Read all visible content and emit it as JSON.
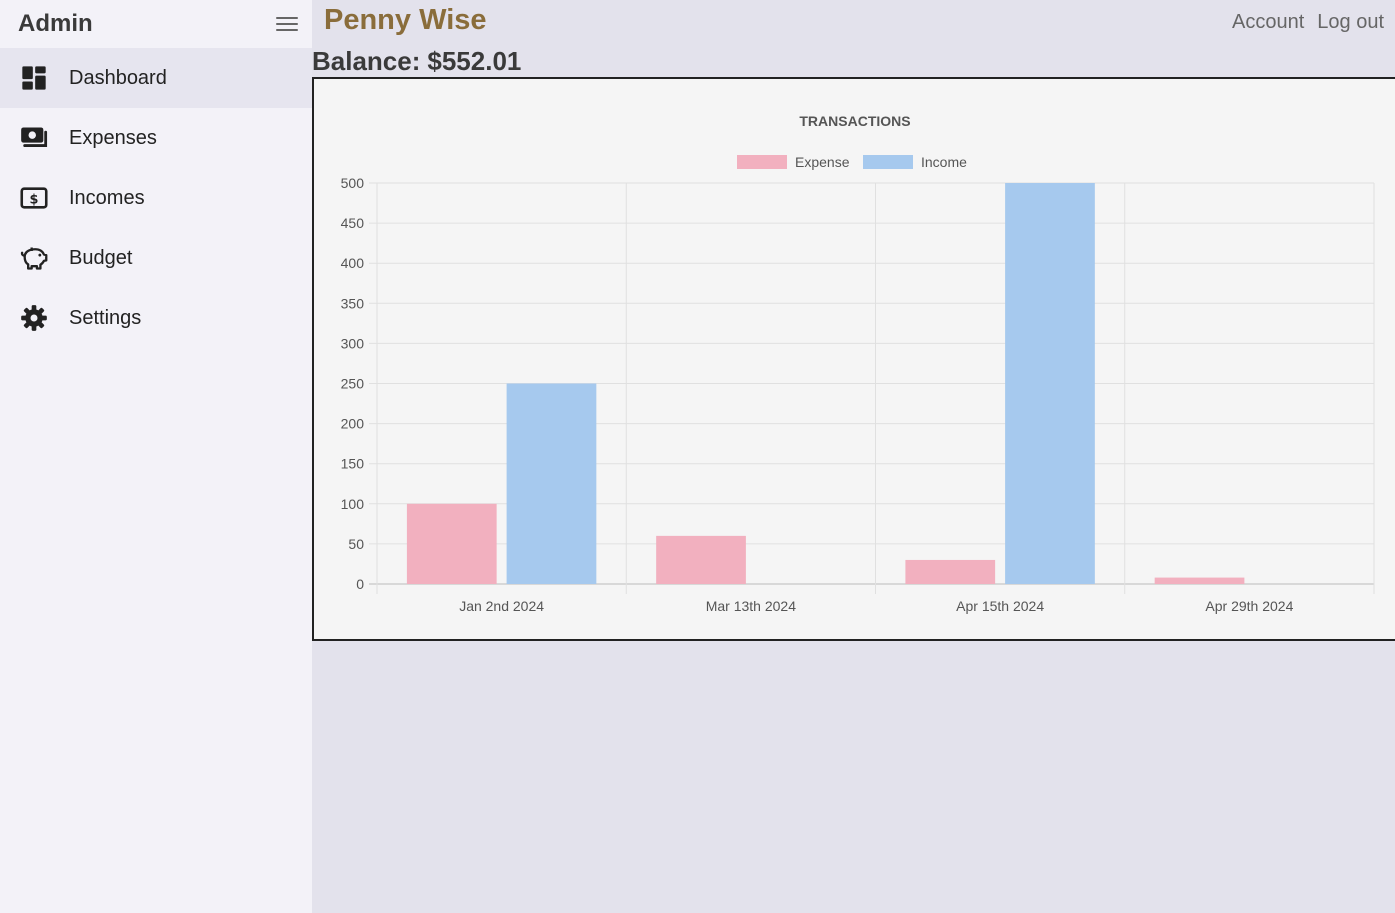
{
  "sidebar": {
    "brand": "Admin",
    "items": [
      {
        "label": "Dashboard",
        "icon": "dashboard-icon",
        "active": true
      },
      {
        "label": "Expenses",
        "icon": "money-icon",
        "active": false
      },
      {
        "label": "Incomes",
        "icon": "dollar-bill-icon",
        "active": false
      },
      {
        "label": "Budget",
        "icon": "piggy-bank-icon",
        "active": false
      },
      {
        "label": "Settings",
        "icon": "gear-icon",
        "active": false
      }
    ]
  },
  "header": {
    "title": "Penny Wise",
    "account_label": "Account",
    "logout_label": "Log out"
  },
  "balance": {
    "label": "Balance:",
    "value": "$552.01"
  },
  "colors": {
    "title": "#8a6d3b",
    "expense": "#f2b0bf",
    "income": "#a6c9ee"
  },
  "chart_data": {
    "type": "bar",
    "title": "TRANSACTIONS",
    "categories": [
      "Jan 2nd 2024",
      "Mar 13th 2024",
      "Apr 15th 2024",
      "Apr 29th 2024"
    ],
    "series": [
      {
        "name": "Expense",
        "values": [
          100,
          60,
          30,
          8
        ]
      },
      {
        "name": "Income",
        "values": [
          250,
          0,
          500,
          0
        ]
      }
    ],
    "ylim": [
      0,
      500
    ],
    "yticks": [
      0,
      50,
      100,
      150,
      200,
      250,
      300,
      350,
      400,
      450,
      500
    ],
    "legend": "top-center",
    "grid": true
  }
}
